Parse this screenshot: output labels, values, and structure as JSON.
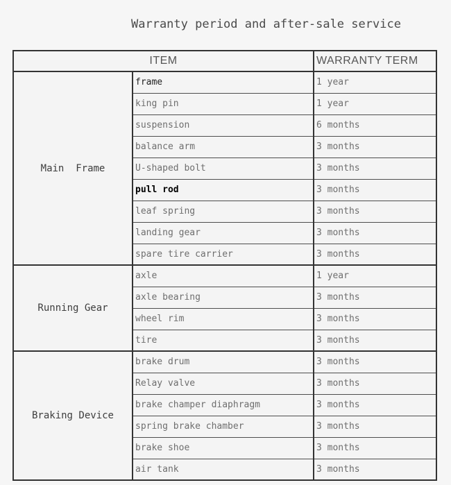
{
  "page": {
    "title": "Warranty period and after-sale service"
  },
  "table": {
    "headers": {
      "item": "ITEM",
      "warranty": "WARRANTY TERM"
    },
    "groups": [
      {
        "name": "Main  Frame",
        "rows": [
          {
            "item": "frame",
            "term": "1 year",
            "emphasis": "dark"
          },
          {
            "item": "king pin",
            "term": "1 year"
          },
          {
            "item": "suspension",
            "term": "6 months"
          },
          {
            "item": "balance arm",
            "term": "3 months"
          },
          {
            "item": "U-shaped bolt",
            "term": "3 months"
          },
          {
            "item": "pull rod",
            "term": "3 months",
            "emphasis": "bold"
          },
          {
            "item": "leaf spring",
            "term": "3 months"
          },
          {
            "item": "landing gear",
            "term": "3 months"
          },
          {
            "item": "spare tire carrier",
            "term": "3 months"
          }
        ]
      },
      {
        "name": "Running Gear",
        "rows": [
          {
            "item": "axle",
            "term": "1 year"
          },
          {
            "item": "axle bearing",
            "term": "3 months"
          },
          {
            "item": "wheel rim",
            "term": "3 months"
          },
          {
            "item": "tire",
            "term": "3 months"
          }
        ]
      },
      {
        "name": "Braking Device",
        "rows": [
          {
            "item": "brake drum",
            "term": "3 months"
          },
          {
            "item": "Relay valve",
            "term": "3 months"
          },
          {
            "item": "brake champer diaphragm",
            "term": "3 months"
          },
          {
            "item": "spring brake chamber",
            "term": "3 months"
          },
          {
            "item": "brake shoe",
            "term": "3 months"
          },
          {
            "item": "air tank",
            "term": "3 months"
          }
        ]
      }
    ]
  },
  "colors": {
    "page_background": "#f6f6f6",
    "cell_background": "#f4f4f4",
    "border": "#333333",
    "row_divider": "#4d4d4d",
    "text_gray": "#6e6e6e",
    "text_dark": "#222222",
    "header_text": "#555555",
    "title_text": "#4a4a4a"
  }
}
